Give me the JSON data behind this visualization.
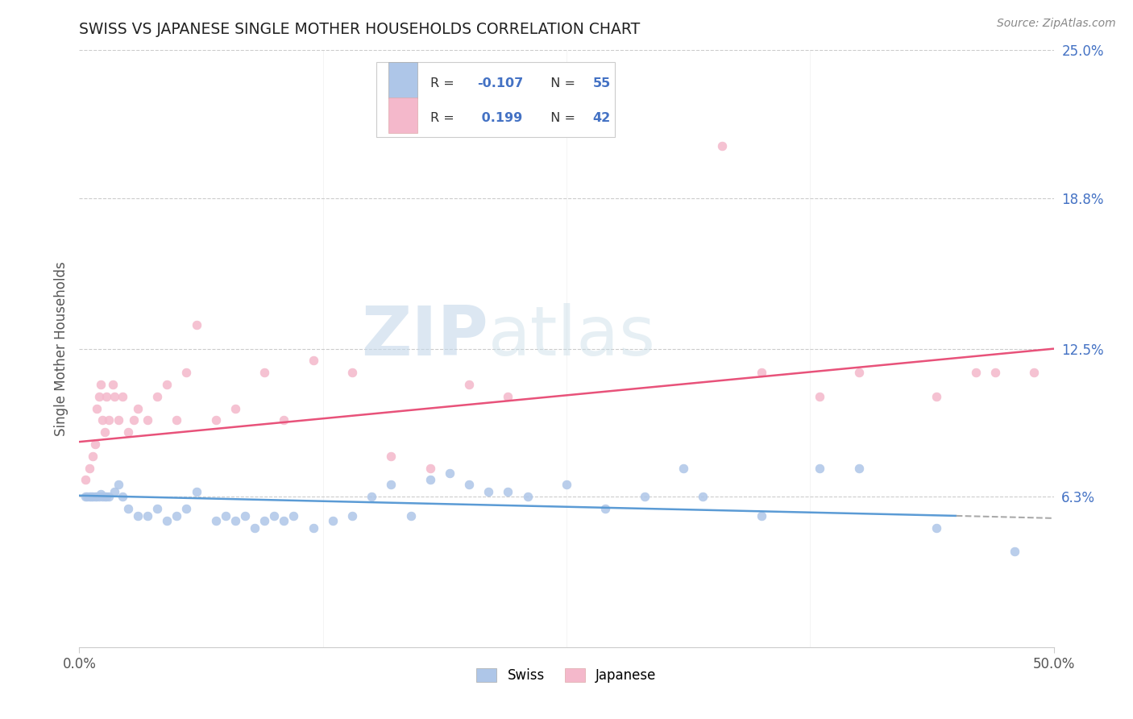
{
  "title": "SWISS VS JAPANESE SINGLE MOTHER HOUSEHOLDS CORRELATION CHART",
  "source": "Source: ZipAtlas.com",
  "ylabel": "Single Mother Households",
  "right_ytick_vals": [
    6.3,
    12.5,
    18.8,
    25.0
  ],
  "right_ytick_labels": [
    "6.3%",
    "12.5%",
    "18.8%",
    "25.0%"
  ],
  "watermark_zip": "ZIP",
  "watermark_atlas": "atlas",
  "swiss_color": "#aec6e8",
  "japanese_color": "#f4b8cb",
  "swiss_line_color": "#5b9bd5",
  "japanese_line_color": "#e8527a",
  "swiss_R": -0.107,
  "swiss_N": 55,
  "japanese_R": 0.199,
  "japanese_N": 42,
  "x_min": 0.0,
  "x_max": 50.0,
  "y_min": 0.0,
  "y_max": 25.0,
  "swiss_line_x0": 0.0,
  "swiss_line_y0": 6.35,
  "swiss_line_x1": 45.0,
  "swiss_line_y1": 5.5,
  "swiss_dash_x0": 45.0,
  "swiss_dash_y0": 5.5,
  "swiss_dash_x1": 50.0,
  "swiss_dash_y1": 5.4,
  "jap_line_x0": 0.0,
  "jap_line_y0": 8.6,
  "jap_line_x1": 50.0,
  "jap_line_y1": 12.5,
  "swiss_points": [
    [
      0.3,
      6.3
    ],
    [
      0.4,
      6.3
    ],
    [
      0.5,
      6.3
    ],
    [
      0.6,
      6.3
    ],
    [
      0.7,
      6.3
    ],
    [
      0.8,
      6.3
    ],
    [
      0.9,
      6.3
    ],
    [
      1.0,
      6.3
    ],
    [
      1.1,
      6.4
    ],
    [
      1.2,
      6.3
    ],
    [
      1.3,
      6.3
    ],
    [
      1.4,
      6.3
    ],
    [
      1.5,
      6.3
    ],
    [
      1.8,
      6.5
    ],
    [
      2.0,
      6.8
    ],
    [
      2.2,
      6.3
    ],
    [
      2.5,
      5.8
    ],
    [
      3.0,
      5.5
    ],
    [
      3.5,
      5.5
    ],
    [
      4.0,
      5.8
    ],
    [
      4.5,
      5.3
    ],
    [
      5.0,
      5.5
    ],
    [
      5.5,
      5.8
    ],
    [
      6.0,
      6.5
    ],
    [
      7.0,
      5.3
    ],
    [
      7.5,
      5.5
    ],
    [
      8.0,
      5.3
    ],
    [
      8.5,
      5.5
    ],
    [
      9.0,
      5.0
    ],
    [
      9.5,
      5.3
    ],
    [
      10.0,
      5.5
    ],
    [
      10.5,
      5.3
    ],
    [
      11.0,
      5.5
    ],
    [
      12.0,
      5.0
    ],
    [
      13.0,
      5.3
    ],
    [
      14.0,
      5.5
    ],
    [
      15.0,
      6.3
    ],
    [
      16.0,
      6.8
    ],
    [
      17.0,
      5.5
    ],
    [
      18.0,
      7.0
    ],
    [
      19.0,
      7.3
    ],
    [
      20.0,
      6.8
    ],
    [
      21.0,
      6.5
    ],
    [
      22.0,
      6.5
    ],
    [
      23.0,
      6.3
    ],
    [
      25.0,
      6.8
    ],
    [
      27.0,
      5.8
    ],
    [
      29.0,
      6.3
    ],
    [
      31.0,
      7.5
    ],
    [
      32.0,
      6.3
    ],
    [
      35.0,
      5.5
    ],
    [
      38.0,
      7.5
    ],
    [
      40.0,
      7.5
    ],
    [
      44.0,
      5.0
    ],
    [
      48.0,
      4.0
    ]
  ],
  "japanese_points": [
    [
      0.3,
      7.0
    ],
    [
      0.5,
      7.5
    ],
    [
      0.7,
      8.0
    ],
    [
      0.8,
      8.5
    ],
    [
      0.9,
      10.0
    ],
    [
      1.0,
      10.5
    ],
    [
      1.1,
      11.0
    ],
    [
      1.2,
      9.5
    ],
    [
      1.3,
      9.0
    ],
    [
      1.4,
      10.5
    ],
    [
      1.5,
      9.5
    ],
    [
      1.7,
      11.0
    ],
    [
      1.8,
      10.5
    ],
    [
      2.0,
      9.5
    ],
    [
      2.2,
      10.5
    ],
    [
      2.5,
      9.0
    ],
    [
      2.8,
      9.5
    ],
    [
      3.0,
      10.0
    ],
    [
      3.5,
      9.5
    ],
    [
      4.0,
      10.5
    ],
    [
      4.5,
      11.0
    ],
    [
      5.0,
      9.5
    ],
    [
      5.5,
      11.5
    ],
    [
      6.0,
      13.5
    ],
    [
      7.0,
      9.5
    ],
    [
      8.0,
      10.0
    ],
    [
      9.5,
      11.5
    ],
    [
      10.5,
      9.5
    ],
    [
      12.0,
      12.0
    ],
    [
      14.0,
      11.5
    ],
    [
      16.0,
      8.0
    ],
    [
      18.0,
      7.5
    ],
    [
      20.0,
      11.0
    ],
    [
      22.0,
      10.5
    ],
    [
      33.0,
      21.0
    ],
    [
      35.0,
      11.5
    ],
    [
      38.0,
      10.5
    ],
    [
      40.0,
      11.5
    ],
    [
      44.0,
      10.5
    ],
    [
      46.0,
      11.5
    ],
    [
      47.0,
      11.5
    ],
    [
      49.0,
      11.5
    ]
  ]
}
